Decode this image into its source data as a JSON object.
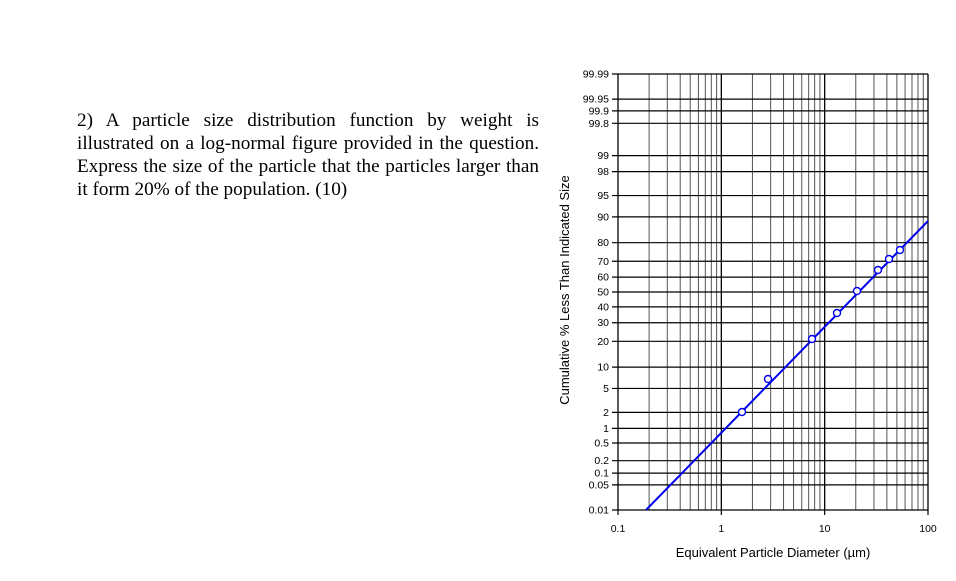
{
  "question": {
    "text": "2) A particle size distribution function by weight is illustrated on a log-normal figure provided in the question. Express the size of the particle that the particles larger than it form 20% of the population. (10)"
  },
  "chart_data": {
    "type": "scatter",
    "subtype": "log-probability (log-normal) plot with fitted line",
    "title": "",
    "xlabel": "Equivalent Particle Diameter (µm)",
    "ylabel": "Cumulative % Less Than Indicated Size",
    "x_scale": "log",
    "y_scale": "probability",
    "xlim": [
      0.1,
      100
    ],
    "ylim": [
      0.01,
      99.99
    ],
    "x_tick_labels": [
      "0.1",
      "1",
      "10",
      "100"
    ],
    "y_tick_labels": [
      "99.99",
      "99.95",
      "99.9",
      "99.8",
      "99",
      "98",
      "95",
      "90",
      "80",
      "70",
      "60",
      "50",
      "40",
      "30",
      "20",
      "10",
      "5",
      "2",
      "1",
      "0.5",
      "0.2",
      "0.1",
      "0.05",
      "0.01"
    ],
    "grid": true,
    "legend": null,
    "series": [
      {
        "name": "measured points",
        "marker": "open-circle",
        "color": "#0000ee",
        "x": [
          1.6,
          2.85,
          7.6,
          13.3,
          21,
          33,
          42,
          54
        ],
        "y": [
          2,
          7,
          22,
          36,
          51,
          65,
          71,
          76
        ]
      },
      {
        "name": "fitted log-normal line",
        "style": "line",
        "color": "#0000ee",
        "x": [
          0.18,
          1.0,
          8.0,
          100
        ],
        "y": [
          0.01,
          0.8,
          22,
          89
        ]
      }
    ]
  },
  "colors": {
    "line": "#0000ee",
    "grid": "#000000",
    "background": "#ffffff"
  }
}
